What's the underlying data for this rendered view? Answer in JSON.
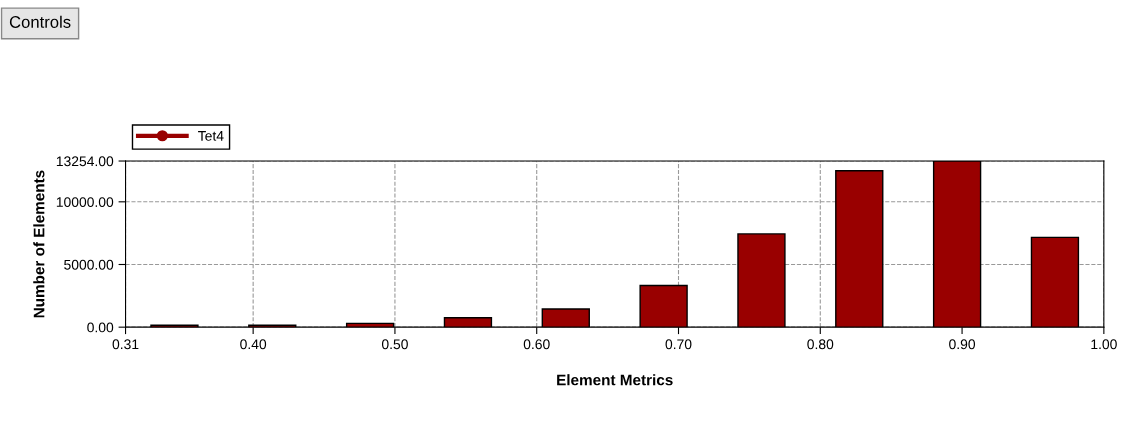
{
  "chart_data": {
    "type": "histogram",
    "xlabel": "Element Metrics",
    "ylabel": "Number of Elements",
    "annotations": [
      "Controls"
    ],
    "bins": [
      0.31,
      0.379,
      0.448,
      0.517,
      0.586,
      0.655,
      0.724,
      0.793,
      0.862,
      0.931,
      1.0
    ],
    "series": [
      {
        "name": "Tet4",
        "color": "#990000",
        "values": [
          150,
          150,
          300,
          750,
          1450,
          3320,
          7440,
          12480,
          13254,
          7160
        ]
      }
    ],
    "xlim": [
      0.31,
      1.0
    ],
    "xticks": [
      0.31,
      {
        "value": 0.4,
        "label": "0.40"
      },
      {
        "value": 0.5,
        "label": "0.50"
      },
      {
        "value": 0.6,
        "label": "0.60"
      },
      {
        "value": 0.7,
        "label": "0.70"
      },
      {
        "value": 0.8,
        "label": "0.80"
      },
      {
        "value": 0.9,
        "label": "0.90"
      },
      {
        "value": 1.0,
        "label": "1.00"
      }
    ],
    "ylim": [
      0,
      13254
    ],
    "yticks": [
      {
        "value": 0,
        "label": "0.00"
      },
      {
        "value": 5000,
        "label": "5000.00"
      },
      {
        "value": 10000,
        "label": "10000.00"
      },
      {
        "value": 13254,
        "label": "13254.00"
      }
    ],
    "grid": true,
    "legend": "top left",
    "marker": "circle"
  }
}
